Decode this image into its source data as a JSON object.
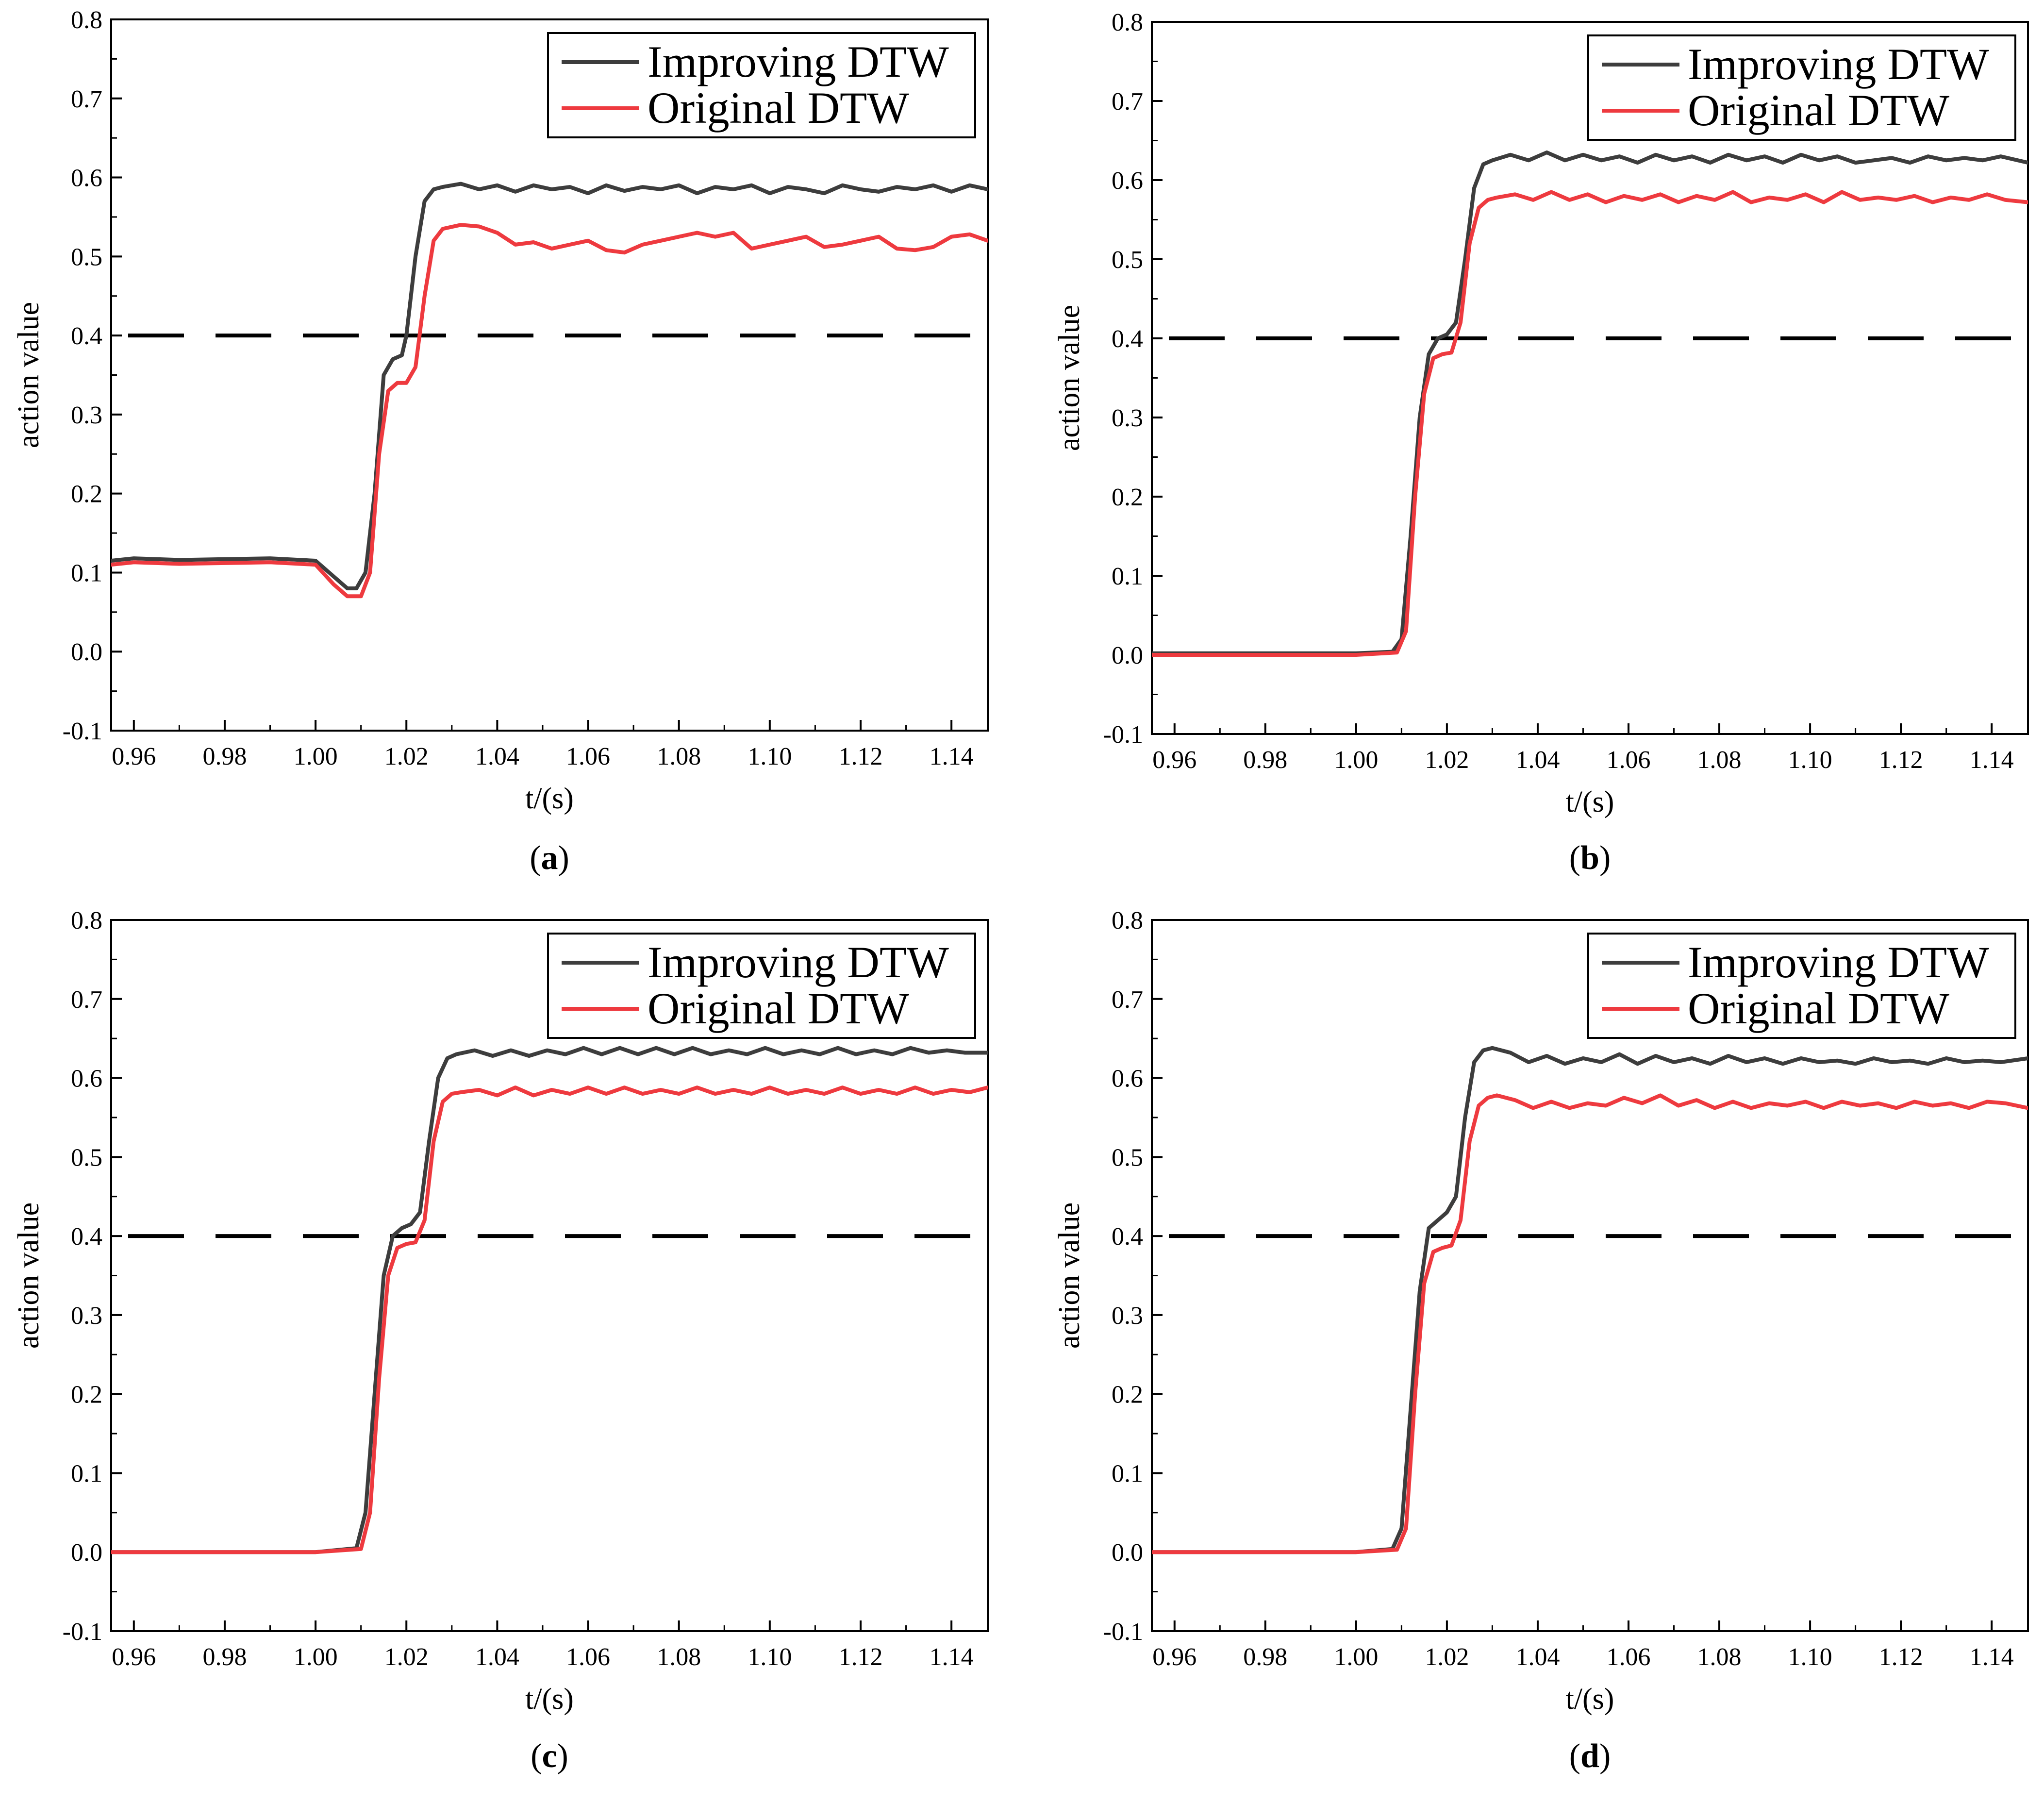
{
  "figure": {
    "colors": {
      "improving": "#3d3d3d",
      "original": "#ee3a3f",
      "threshold": "#000000",
      "axis": "#000000"
    }
  },
  "chart_data": [
    {
      "panel": "a",
      "label_open": "(",
      "label_letter": "a",
      "label_close": ")",
      "type": "line",
      "xlabel": "t/(s)",
      "ylabel": "action value",
      "xlim": [
        0.955,
        1.148
      ],
      "ylim": [
        -0.1,
        0.8
      ],
      "xticks": [
        0.96,
        0.98,
        1.0,
        1.02,
        1.04,
        1.06,
        1.08,
        1.1,
        1.12,
        1.14
      ],
      "xtick_labels": [
        "0.96",
        "0.98",
        "1.00",
        "1.02",
        "1.04",
        "1.06",
        "1.08",
        "1.10",
        "1.12",
        "1.14"
      ],
      "yticks": [
        -0.1,
        0.0,
        0.1,
        0.2,
        0.3,
        0.4,
        0.5,
        0.6,
        0.7,
        0.8
      ],
      "ytick_labels": [
        "-0.1",
        "0.0",
        "0.1",
        "0.2",
        "0.3",
        "0.4",
        "0.5",
        "0.6",
        "0.7",
        "0.8"
      ],
      "threshold": 0.4,
      "legend": [
        "Improving DTW",
        "Original DTW"
      ],
      "legend_position": "top-right",
      "series": [
        {
          "name": "Improving DTW",
          "x": [
            0.955,
            0.96,
            0.97,
            0.98,
            0.99,
            1.0,
            1.004,
            1.007,
            1.009,
            1.011,
            1.013,
            1.015,
            1.017,
            1.019,
            1.02,
            1.022,
            1.024,
            1.026,
            1.028,
            1.032,
            1.036,
            1.04,
            1.044,
            1.048,
            1.052,
            1.056,
            1.06,
            1.064,
            1.068,
            1.072,
            1.076,
            1.08,
            1.084,
            1.088,
            1.092,
            1.096,
            1.1,
            1.104,
            1.108,
            1.112,
            1.116,
            1.12,
            1.124,
            1.128,
            1.132,
            1.136,
            1.14,
            1.144,
            1.148
          ],
          "y": [
            0.115,
            0.118,
            0.116,
            0.117,
            0.118,
            0.115,
            0.095,
            0.08,
            0.08,
            0.1,
            0.2,
            0.35,
            0.37,
            0.375,
            0.4,
            0.5,
            0.57,
            0.585,
            0.588,
            0.592,
            0.585,
            0.59,
            0.582,
            0.59,
            0.585,
            0.588,
            0.58,
            0.59,
            0.583,
            0.588,
            0.585,
            0.59,
            0.58,
            0.588,
            0.585,
            0.59,
            0.58,
            0.588,
            0.585,
            0.58,
            0.59,
            0.585,
            0.582,
            0.588,
            0.585,
            0.59,
            0.582,
            0.59,
            0.585
          ]
        },
        {
          "name": "Original DTW",
          "x": [
            0.955,
            0.96,
            0.97,
            0.98,
            0.99,
            1.0,
            1.004,
            1.007,
            1.01,
            1.012,
            1.014,
            1.016,
            1.018,
            1.02,
            1.022,
            1.024,
            1.026,
            1.028,
            1.032,
            1.036,
            1.04,
            1.044,
            1.048,
            1.052,
            1.056,
            1.06,
            1.064,
            1.068,
            1.072,
            1.076,
            1.08,
            1.084,
            1.088,
            1.092,
            1.096,
            1.1,
            1.104,
            1.108,
            1.112,
            1.116,
            1.12,
            1.124,
            1.128,
            1.132,
            1.136,
            1.14,
            1.144,
            1.148
          ],
          "y": [
            0.11,
            0.113,
            0.111,
            0.112,
            0.113,
            0.11,
            0.085,
            0.07,
            0.07,
            0.1,
            0.25,
            0.33,
            0.34,
            0.34,
            0.36,
            0.45,
            0.52,
            0.535,
            0.54,
            0.538,
            0.53,
            0.515,
            0.518,
            0.51,
            0.515,
            0.52,
            0.508,
            0.505,
            0.515,
            0.52,
            0.525,
            0.53,
            0.525,
            0.53,
            0.51,
            0.515,
            0.52,
            0.525,
            0.512,
            0.515,
            0.52,
            0.525,
            0.51,
            0.508,
            0.512,
            0.525,
            0.528,
            0.52
          ]
        }
      ]
    },
    {
      "panel": "b",
      "label_open": "(",
      "label_letter": "b",
      "label_close": ")",
      "type": "line",
      "xlabel": "t/(s)",
      "ylabel": "action value",
      "xlim": [
        0.955,
        1.148
      ],
      "ylim": [
        -0.1,
        0.8
      ],
      "xticks": [
        0.96,
        0.98,
        1.0,
        1.02,
        1.04,
        1.06,
        1.08,
        1.1,
        1.12,
        1.14
      ],
      "xtick_labels": [
        "0.96",
        "0.98",
        "1.00",
        "1.02",
        "1.04",
        "1.06",
        "1.08",
        "1.10",
        "1.12",
        "1.14"
      ],
      "yticks": [
        -0.1,
        0.0,
        0.1,
        0.2,
        0.3,
        0.4,
        0.5,
        0.6,
        0.7,
        0.8
      ],
      "ytick_labels": [
        "-0.1",
        "0.0",
        "0.1",
        "0.2",
        "0.3",
        "0.4",
        "0.5",
        "0.6",
        "0.7",
        "0.8"
      ],
      "threshold": 0.4,
      "legend": [
        "Improving DTW",
        "Original DTW"
      ],
      "legend_position": "top-right",
      "series": [
        {
          "name": "Improving DTW",
          "x": [
            0.955,
            0.98,
            1.0,
            1.008,
            1.01,
            1.012,
            1.014,
            1.016,
            1.018,
            1.02,
            1.022,
            1.024,
            1.026,
            1.028,
            1.03,
            1.034,
            1.038,
            1.042,
            1.046,
            1.05,
            1.054,
            1.058,
            1.062,
            1.066,
            1.07,
            1.074,
            1.078,
            1.082,
            1.086,
            1.09,
            1.094,
            1.098,
            1.102,
            1.106,
            1.11,
            1.114,
            1.118,
            1.122,
            1.126,
            1.13,
            1.134,
            1.138,
            1.142,
            1.148
          ],
          "y": [
            0.002,
            0.002,
            0.002,
            0.004,
            0.02,
            0.15,
            0.3,
            0.38,
            0.4,
            0.405,
            0.42,
            0.5,
            0.59,
            0.62,
            0.625,
            0.632,
            0.625,
            0.635,
            0.625,
            0.632,
            0.625,
            0.63,
            0.622,
            0.632,
            0.625,
            0.63,
            0.622,
            0.632,
            0.625,
            0.63,
            0.622,
            0.632,
            0.625,
            0.63,
            0.622,
            0.625,
            0.628,
            0.622,
            0.63,
            0.625,
            0.628,
            0.625,
            0.63,
            0.622
          ]
        },
        {
          "name": "Original DTW",
          "x": [
            0.955,
            0.98,
            1.0,
            1.009,
            1.011,
            1.013,
            1.015,
            1.017,
            1.019,
            1.021,
            1.023,
            1.025,
            1.027,
            1.029,
            1.031,
            1.035,
            1.039,
            1.043,
            1.047,
            1.051,
            1.055,
            1.059,
            1.063,
            1.067,
            1.071,
            1.075,
            1.079,
            1.083,
            1.087,
            1.091,
            1.095,
            1.099,
            1.103,
            1.107,
            1.111,
            1.115,
            1.119,
            1.123,
            1.127,
            1.131,
            1.135,
            1.139,
            1.143,
            1.148
          ],
          "y": [
            0.0,
            0.0,
            0.0,
            0.003,
            0.03,
            0.2,
            0.33,
            0.375,
            0.38,
            0.382,
            0.42,
            0.52,
            0.565,
            0.575,
            0.578,
            0.582,
            0.575,
            0.585,
            0.575,
            0.582,
            0.572,
            0.58,
            0.575,
            0.582,
            0.572,
            0.58,
            0.575,
            0.585,
            0.572,
            0.578,
            0.575,
            0.582,
            0.572,
            0.585,
            0.575,
            0.578,
            0.575,
            0.58,
            0.572,
            0.578,
            0.575,
            0.582,
            0.575,
            0.572
          ]
        }
      ]
    },
    {
      "panel": "c",
      "label_open": "(",
      "label_letter": "c",
      "label_close": ")",
      "type": "line",
      "xlabel": "t/(s)",
      "ylabel": "action value",
      "xlim": [
        0.955,
        1.148
      ],
      "ylim": [
        -0.1,
        0.8
      ],
      "xticks": [
        0.96,
        0.98,
        1.0,
        1.02,
        1.04,
        1.06,
        1.08,
        1.1,
        1.12,
        1.14
      ],
      "xtick_labels": [
        "0.96",
        "0.98",
        "1.00",
        "1.02",
        "1.04",
        "1.06",
        "1.08",
        "1.10",
        "1.12",
        "1.14"
      ],
      "yticks": [
        -0.1,
        0.0,
        0.1,
        0.2,
        0.3,
        0.4,
        0.5,
        0.6,
        0.7,
        0.8
      ],
      "ytick_labels": [
        "-0.1",
        "0.0",
        "0.1",
        "0.2",
        "0.3",
        "0.4",
        "0.5",
        "0.6",
        "0.7",
        "0.8"
      ],
      "threshold": 0.4,
      "legend": [
        "Improving DTW",
        "Original DTW"
      ],
      "legend_position": "top-right",
      "series": [
        {
          "name": "Improving DTW",
          "x": [
            0.955,
            0.98,
            1.0,
            1.009,
            1.011,
            1.013,
            1.015,
            1.017,
            1.019,
            1.021,
            1.023,
            1.025,
            1.027,
            1.029,
            1.031,
            1.035,
            1.039,
            1.043,
            1.047,
            1.051,
            1.055,
            1.059,
            1.063,
            1.067,
            1.071,
            1.075,
            1.079,
            1.083,
            1.087,
            1.091,
            1.095,
            1.099,
            1.103,
            1.107,
            1.111,
            1.115,
            1.119,
            1.123,
            1.127,
            1.131,
            1.135,
            1.139,
            1.143,
            1.148
          ],
          "y": [
            0.0,
            0.0,
            0.0,
            0.005,
            0.05,
            0.2,
            0.35,
            0.4,
            0.41,
            0.415,
            0.43,
            0.52,
            0.6,
            0.625,
            0.63,
            0.635,
            0.628,
            0.635,
            0.628,
            0.635,
            0.63,
            0.638,
            0.63,
            0.638,
            0.63,
            0.638,
            0.63,
            0.638,
            0.63,
            0.635,
            0.63,
            0.638,
            0.63,
            0.635,
            0.63,
            0.638,
            0.63,
            0.635,
            0.63,
            0.638,
            0.632,
            0.635,
            0.632,
            0.632
          ]
        },
        {
          "name": "Original DTW",
          "x": [
            0.955,
            0.98,
            1.0,
            1.01,
            1.012,
            1.014,
            1.016,
            1.018,
            1.02,
            1.022,
            1.024,
            1.026,
            1.028,
            1.03,
            1.032,
            1.036,
            1.04,
            1.044,
            1.048,
            1.052,
            1.056,
            1.06,
            1.064,
            1.068,
            1.072,
            1.076,
            1.08,
            1.084,
            1.088,
            1.092,
            1.096,
            1.1,
            1.104,
            1.108,
            1.112,
            1.116,
            1.12,
            1.124,
            1.128,
            1.132,
            1.136,
            1.14,
            1.144,
            1.148
          ],
          "y": [
            0.0,
            0.0,
            0.0,
            0.004,
            0.05,
            0.22,
            0.35,
            0.385,
            0.39,
            0.392,
            0.42,
            0.52,
            0.57,
            0.58,
            0.582,
            0.585,
            0.578,
            0.588,
            0.578,
            0.585,
            0.58,
            0.588,
            0.58,
            0.588,
            0.58,
            0.585,
            0.58,
            0.588,
            0.58,
            0.585,
            0.58,
            0.588,
            0.58,
            0.585,
            0.58,
            0.588,
            0.58,
            0.585,
            0.58,
            0.588,
            0.58,
            0.585,
            0.582,
            0.588
          ]
        }
      ]
    },
    {
      "panel": "d",
      "label_open": "(",
      "label_letter": "d",
      "label_close": ")",
      "type": "line",
      "xlabel": "t/(s)",
      "ylabel": "action value",
      "xlim": [
        0.955,
        1.148
      ],
      "ylim": [
        -0.1,
        0.8
      ],
      "xticks": [
        0.96,
        0.98,
        1.0,
        1.02,
        1.04,
        1.06,
        1.08,
        1.1,
        1.12,
        1.14
      ],
      "xtick_labels": [
        "0.96",
        "0.98",
        "1.00",
        "1.02",
        "1.04",
        "1.06",
        "1.08",
        "1.10",
        "1.12",
        "1.14"
      ],
      "yticks": [
        -0.1,
        0.0,
        0.1,
        0.2,
        0.3,
        0.4,
        0.5,
        0.6,
        0.7,
        0.8
      ],
      "ytick_labels": [
        "-0.1",
        "0.0",
        "0.1",
        "0.2",
        "0.3",
        "0.4",
        "0.5",
        "0.6",
        "0.7",
        "0.8"
      ],
      "threshold": 0.4,
      "legend": [
        "Improving DTW",
        "Original DTW"
      ],
      "legend_position": "top-right",
      "series": [
        {
          "name": "Improving DTW",
          "x": [
            0.955,
            0.98,
            1.0,
            1.008,
            1.01,
            1.012,
            1.014,
            1.016,
            1.018,
            1.02,
            1.022,
            1.024,
            1.026,
            1.028,
            1.03,
            1.034,
            1.038,
            1.042,
            1.046,
            1.05,
            1.054,
            1.058,
            1.062,
            1.066,
            1.07,
            1.074,
            1.078,
            1.082,
            1.086,
            1.09,
            1.094,
            1.098,
            1.102,
            1.106,
            1.11,
            1.114,
            1.118,
            1.122,
            1.126,
            1.13,
            1.134,
            1.138,
            1.142,
            1.148
          ],
          "y": [
            0.0,
            0.0,
            0.0,
            0.004,
            0.03,
            0.18,
            0.33,
            0.41,
            0.42,
            0.43,
            0.45,
            0.55,
            0.62,
            0.635,
            0.638,
            0.632,
            0.62,
            0.628,
            0.618,
            0.625,
            0.62,
            0.63,
            0.618,
            0.628,
            0.62,
            0.625,
            0.618,
            0.628,
            0.62,
            0.625,
            0.618,
            0.625,
            0.62,
            0.622,
            0.618,
            0.625,
            0.62,
            0.622,
            0.618,
            0.625,
            0.62,
            0.622,
            0.62,
            0.625
          ]
        },
        {
          "name": "Original DTW",
          "x": [
            0.955,
            0.98,
            1.0,
            1.009,
            1.011,
            1.013,
            1.015,
            1.017,
            1.019,
            1.021,
            1.023,
            1.025,
            1.027,
            1.029,
            1.031,
            1.035,
            1.039,
            1.043,
            1.047,
            1.051,
            1.055,
            1.059,
            1.063,
            1.067,
            1.071,
            1.075,
            1.079,
            1.083,
            1.087,
            1.091,
            1.095,
            1.099,
            1.103,
            1.107,
            1.111,
            1.115,
            1.119,
            1.123,
            1.127,
            1.131,
            1.135,
            1.139,
            1.143,
            1.148
          ],
          "y": [
            0.0,
            0.0,
            0.0,
            0.003,
            0.03,
            0.2,
            0.34,
            0.38,
            0.385,
            0.388,
            0.42,
            0.52,
            0.565,
            0.575,
            0.578,
            0.572,
            0.562,
            0.57,
            0.562,
            0.568,
            0.565,
            0.575,
            0.568,
            0.578,
            0.565,
            0.572,
            0.562,
            0.57,
            0.562,
            0.568,
            0.565,
            0.57,
            0.562,
            0.57,
            0.565,
            0.568,
            0.562,
            0.57,
            0.565,
            0.568,
            0.562,
            0.57,
            0.568,
            0.562
          ]
        }
      ]
    }
  ]
}
